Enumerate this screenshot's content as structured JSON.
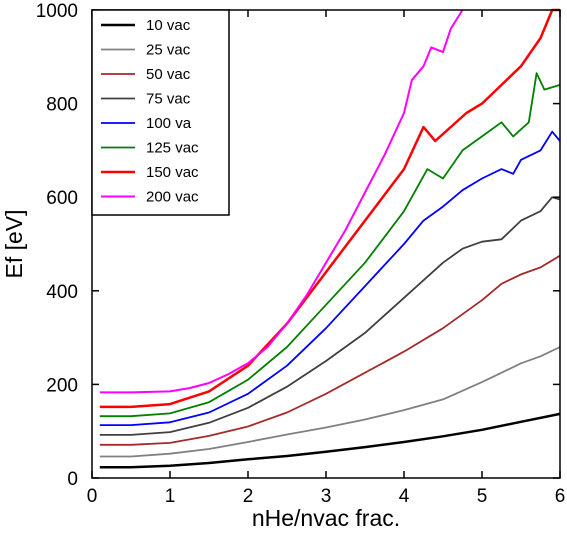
{
  "chart_data": {
    "type": "line",
    "xlabel": "nHe/nvac frac.",
    "ylabel": "Ef [eV]",
    "xlim": [
      0,
      6
    ],
    "ylim": [
      0,
      1000
    ],
    "x_ticks": [
      0,
      1,
      2,
      3,
      4,
      5,
      6
    ],
    "y_ticks": [
      0,
      200,
      400,
      600,
      800,
      1000
    ],
    "grid": false,
    "legend_position": "top-left",
    "series": [
      {
        "name": "10 vac",
        "color": "#000000",
        "x": [
          0.1,
          0.5,
          1.0,
          1.5,
          2.0,
          2.5,
          3.0,
          3.5,
          4.0,
          4.5,
          5.0,
          5.5,
          6.0
        ],
        "y": [
          23,
          23,
          26,
          32,
          40,
          47,
          56,
          66,
          77,
          89,
          103,
          120,
          137
        ]
      },
      {
        "name": "25 vac",
        "color": "#808080",
        "x": [
          0.1,
          0.5,
          1.0,
          1.5,
          2.0,
          2.5,
          3.0,
          3.5,
          4.0,
          4.5,
          5.0,
          5.5,
          5.75,
          6.0
        ],
        "y": [
          46,
          46,
          52,
          62,
          77,
          93,
          108,
          125,
          145,
          168,
          205,
          245,
          260,
          280
        ]
      },
      {
        "name": "50 vac",
        "color": "#a52a2a",
        "x": [
          0.1,
          0.5,
          1.0,
          1.5,
          2.0,
          2.5,
          3.0,
          3.5,
          4.0,
          4.5,
          5.0,
          5.25,
          5.5,
          5.75,
          6.0
        ],
        "y": [
          71,
          71,
          75,
          90,
          110,
          140,
          180,
          225,
          270,
          320,
          380,
          415,
          435,
          450,
          475
        ]
      },
      {
        "name": "75 vac",
        "color": "#404040",
        "x": [
          0.1,
          0.5,
          1.0,
          1.5,
          2.0,
          2.5,
          3.0,
          3.5,
          4.0,
          4.5,
          4.75,
          5.0,
          5.25,
          5.5,
          5.75,
          5.9,
          6.0
        ],
        "y": [
          92,
          92,
          98,
          118,
          150,
          195,
          250,
          310,
          385,
          460,
          490,
          505,
          510,
          550,
          570,
          600,
          595
        ]
      },
      {
        "name": "100 va",
        "color": "#0000ff",
        "x": [
          0.1,
          0.5,
          1.0,
          1.5,
          2.0,
          2.5,
          3.0,
          3.5,
          4.0,
          4.25,
          4.5,
          4.75,
          5.0,
          5.25,
          5.4,
          5.5,
          5.75,
          5.9,
          6.0
        ],
        "y": [
          113,
          113,
          119,
          140,
          180,
          240,
          320,
          410,
          500,
          550,
          580,
          615,
          640,
          660,
          650,
          680,
          700,
          740,
          720
        ]
      },
      {
        "name": "125 vac",
        "color": "#008000",
        "x": [
          0.1,
          0.5,
          1.0,
          1.5,
          2.0,
          2.5,
          3.0,
          3.5,
          4.0,
          4.3,
          4.5,
          4.75,
          5.0,
          5.25,
          5.4,
          5.6,
          5.7,
          5.8,
          6.0
        ],
        "y": [
          132,
          132,
          138,
          162,
          210,
          280,
          370,
          460,
          570,
          660,
          640,
          700,
          730,
          760,
          730,
          760,
          865,
          830,
          840
        ]
      },
      {
        "name": "150 vac",
        "color": "#ff0000",
        "x": [
          0.1,
          0.5,
          1.0,
          1.5,
          2.0,
          2.5,
          3.0,
          3.5,
          4.0,
          4.25,
          4.4,
          4.6,
          4.8,
          5.0,
          5.25,
          5.5,
          5.75,
          5.9,
          6.0
        ],
        "y": [
          152,
          152,
          158,
          185,
          240,
          330,
          440,
          550,
          660,
          750,
          720,
          750,
          780,
          800,
          840,
          880,
          940,
          1000,
          1000
        ]
      },
      {
        "name": "200 vac",
        "color": "#ff00ff",
        "x": [
          0.1,
          0.5,
          1.0,
          1.25,
          1.5,
          1.75,
          2.0,
          2.25,
          2.5,
          2.75,
          3.0,
          3.25,
          3.5,
          3.75,
          4.0,
          4.1,
          4.25,
          4.35,
          4.5,
          4.6,
          4.75
        ],
        "y": [
          183,
          183,
          185,
          192,
          203,
          222,
          245,
          280,
          330,
          390,
          460,
          530,
          610,
          690,
          780,
          850,
          880,
          920,
          910,
          960,
          1000
        ]
      }
    ]
  }
}
